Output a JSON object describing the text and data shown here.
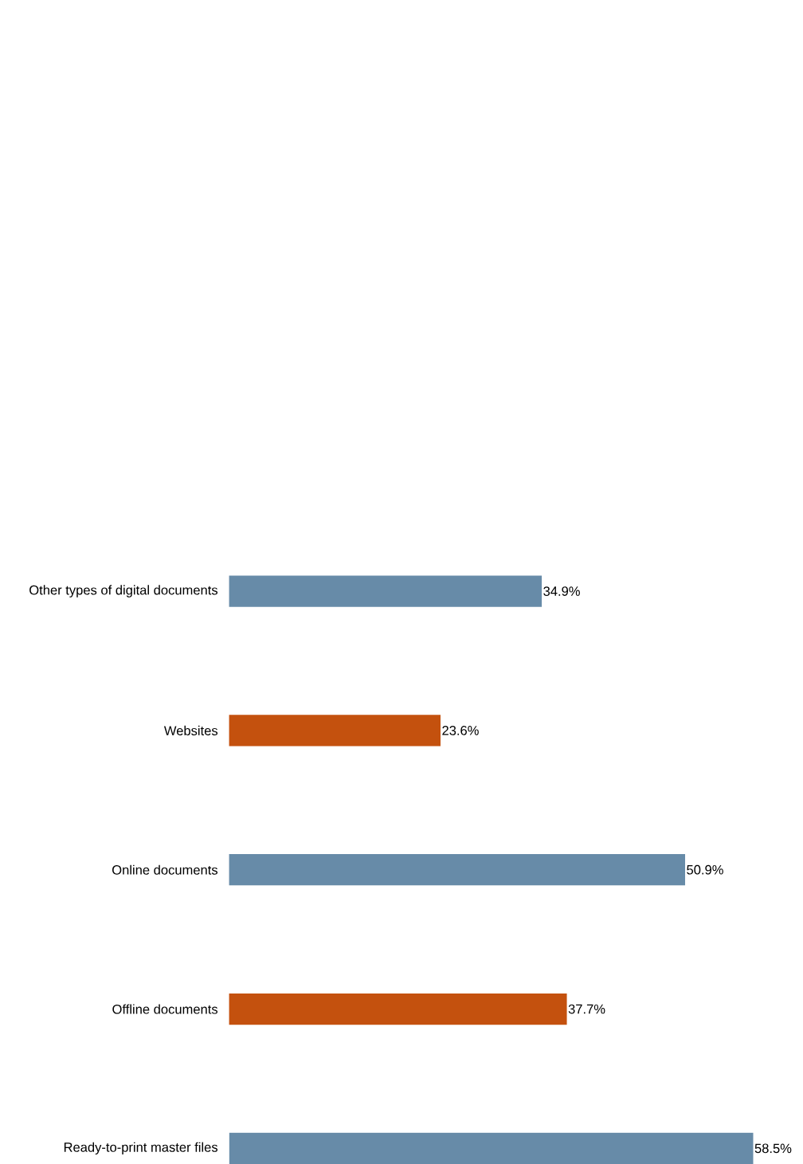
{
  "chart_data": {
    "type": "bar",
    "orientation": "horizontal",
    "categories": [
      "Other types of digital documents",
      "Websites",
      "Online documents",
      "Offline documents",
      "Ready-to-print master files"
    ],
    "values": [
      34.9,
      23.6,
      50.9,
      37.7,
      58.5
    ],
    "colors": [
      "#678ba8",
      "#c4510e",
      "#678ba8",
      "#c4510e",
      "#678ba8"
    ],
    "value_labels": [
      "34.9%",
      "23.6%",
      "50.9%",
      "37.7%",
      "58.5%"
    ]
  }
}
